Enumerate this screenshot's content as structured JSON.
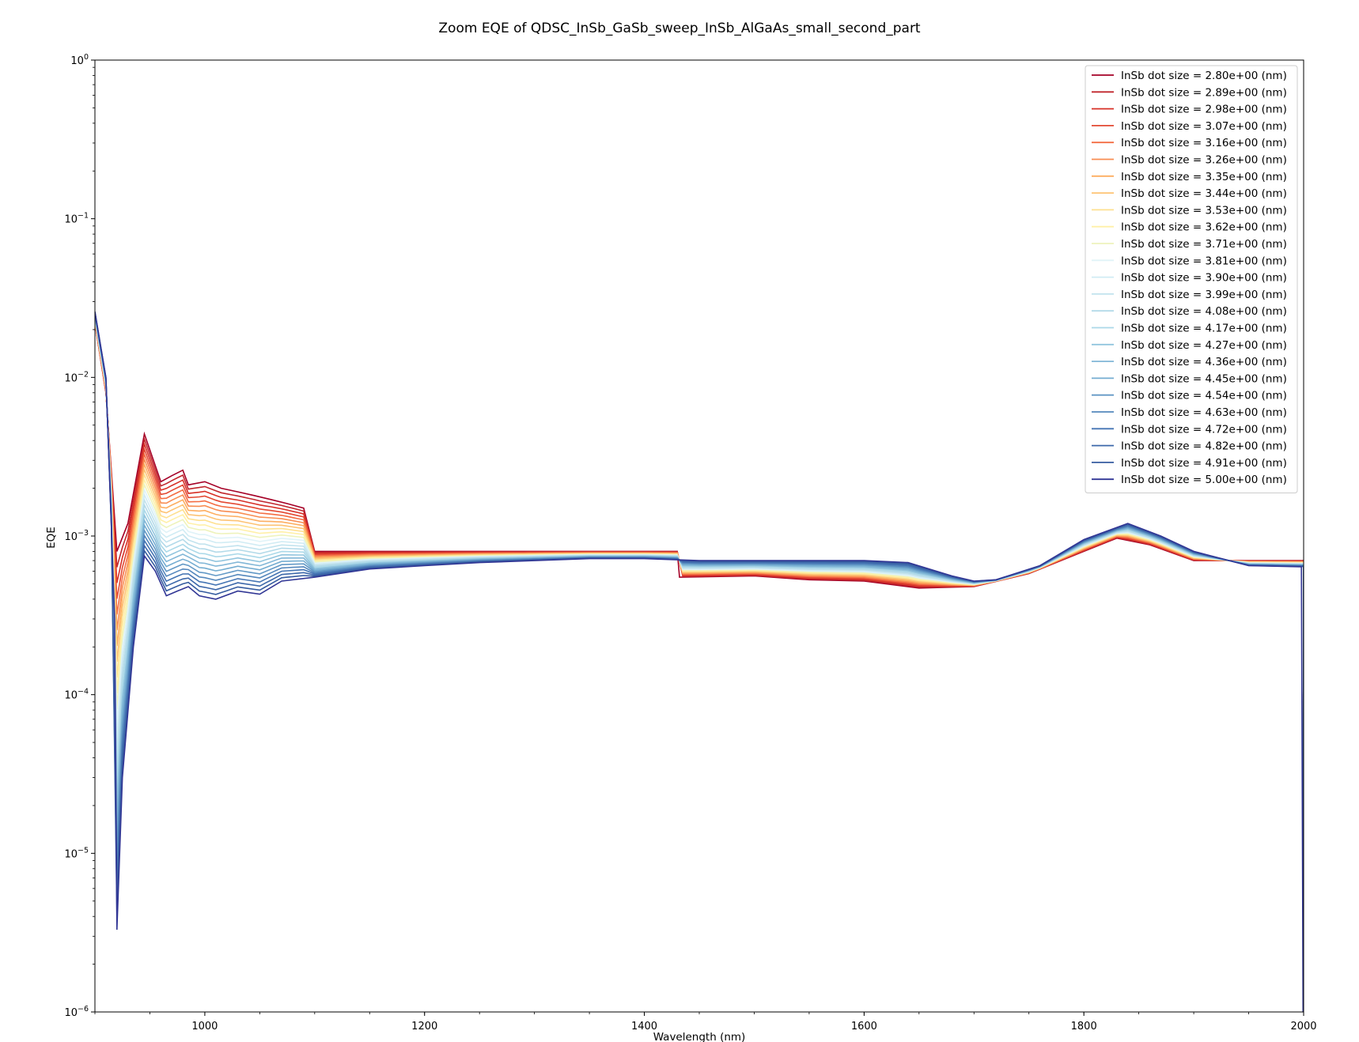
{
  "chart_data": {
    "type": "line",
    "title": "Zoom EQE of QDSC_InSb_GaSb_sweep_InSb_AlGaAs_small_second_part",
    "xlabel": "Wavelength (nm)",
    "ylabel": "EQE",
    "xlim": [
      900,
      2000
    ],
    "ylim": [
      1e-06,
      1
    ],
    "yscale": "log",
    "grid": false,
    "legend_position": "top-right",
    "x_ticks": [
      {
        "value": 1000,
        "label": "1000"
      },
      {
        "value": 1200,
        "label": "1200"
      },
      {
        "value": 1400,
        "label": "1400"
      },
      {
        "value": 1600,
        "label": "1600"
      },
      {
        "value": 1800,
        "label": "1800"
      },
      {
        "value": 2000,
        "label": "2000"
      }
    ],
    "y_ticks": [
      {
        "value": 1e-06,
        "base": "10",
        "exp": "−6"
      },
      {
        "value": 1e-05,
        "base": "10",
        "exp": "−5"
      },
      {
        "value": 0.0001,
        "base": "10",
        "exp": "−4"
      },
      {
        "value": 0.001,
        "base": "10",
        "exp": "−3"
      },
      {
        "value": 0.01,
        "base": "10",
        "exp": "−2"
      },
      {
        "value": 0.1,
        "base": "10",
        "exp": "−1"
      },
      {
        "value": 1,
        "base": "10",
        "exp": "0"
      }
    ],
    "series": [
      {
        "name": "InSb dot size = 2.80e+00 (nm)",
        "color": "#a50026",
        "points": [
          [
            900,
            0.022
          ],
          [
            910,
            0.008
          ],
          [
            920,
            0.0008
          ],
          [
            930,
            0.0012
          ],
          [
            945,
            0.0044
          ],
          [
            960,
            0.0022
          ],
          [
            970,
            0.0024
          ],
          [
            980,
            0.0026
          ],
          [
            985,
            0.0021
          ],
          [
            1000,
            0.0022
          ],
          [
            1015,
            0.002
          ],
          [
            1030,
            0.0019
          ],
          [
            1045,
            0.0018
          ],
          [
            1060,
            0.0017
          ],
          [
            1075,
            0.0016
          ],
          [
            1090,
            0.0015
          ],
          [
            1100,
            0.0008
          ],
          [
            1150,
            0.0008
          ],
          [
            1200,
            0.0008
          ],
          [
            1250,
            0.0008
          ],
          [
            1300,
            0.0008
          ],
          [
            1350,
            0.0008
          ],
          [
            1400,
            0.0008
          ],
          [
            1430,
            0.0008
          ],
          [
            1432,
            0.00055
          ],
          [
            1500,
            0.00056
          ],
          [
            1550,
            0.00053
          ],
          [
            1600,
            0.00052
          ],
          [
            1650,
            0.00047
          ],
          [
            1700,
            0.00048
          ],
          [
            1750,
            0.00058
          ],
          [
            1800,
            0.0008
          ],
          [
            1830,
            0.00097
          ],
          [
            1860,
            0.00088
          ],
          [
            1900,
            0.0007
          ],
          [
            1950,
            0.0007
          ],
          [
            2000,
            0.0007
          ],
          [
            1999.5,
            1e-06
          ]
        ]
      },
      {
        "name": "InSb dot size = 2.89e+00 (nm)",
        "color": "#c1272d",
        "points": []
      },
      {
        "name": "InSb dot size = 2.98e+00 (nm)",
        "color": "#d73027",
        "points": []
      },
      {
        "name": "InSb dot size = 3.07e+00 (nm)",
        "color": "#e34933",
        "points": []
      },
      {
        "name": "InSb dot size = 3.16e+00 (nm)",
        "color": "#f46d43",
        "points": []
      },
      {
        "name": "InSb dot size = 3.26e+00 (nm)",
        "color": "#f88d52",
        "points": []
      },
      {
        "name": "InSb dot size = 3.35e+00 (nm)",
        "color": "#fdae61",
        "points": []
      },
      {
        "name": "InSb dot size = 3.44e+00 (nm)",
        "color": "#fdc374",
        "points": []
      },
      {
        "name": "InSb dot size = 3.53e+00 (nm)",
        "color": "#fee090",
        "points": []
      },
      {
        "name": "InSb dot size = 3.62e+00 (nm)",
        "color": "#fff0a8",
        "points": []
      },
      {
        "name": "InSb dot size = 3.71e+00 (nm)",
        "color": "#eef3bc",
        "points": []
      },
      {
        "name": "InSb dot size = 3.81e+00 (nm)",
        "color": "#e0f3f8",
        "points": []
      },
      {
        "name": "InSb dot size = 3.90e+00 (nm)",
        "color": "#d1ecf4",
        "points": []
      },
      {
        "name": "InSb dot size = 3.99e+00 (nm)",
        "color": "#c2e3ee",
        "points": []
      },
      {
        "name": "InSb dot size = 4.08e+00 (nm)",
        "color": "#b3dae9",
        "points": []
      },
      {
        "name": "InSb dot size = 4.17e+00 (nm)",
        "color": "#abd9e9",
        "points": []
      },
      {
        "name": "InSb dot size = 4.27e+00 (nm)",
        "color": "#92c5de",
        "points": []
      },
      {
        "name": "InSb dot size = 4.36e+00 (nm)",
        "color": "#82b7d7",
        "points": []
      },
      {
        "name": "InSb dot size = 4.45e+00 (nm)",
        "color": "#74add1",
        "points": []
      },
      {
        "name": "InSb dot size = 4.54e+00 (nm)",
        "color": "#6399c6",
        "points": []
      },
      {
        "name": "InSb dot size = 4.63e+00 (nm)",
        "color": "#5588bd",
        "points": []
      },
      {
        "name": "InSb dot size = 4.72e+00 (nm)",
        "color": "#4575b4",
        "points": []
      },
      {
        "name": "InSb dot size = 4.82e+00 (nm)",
        "color": "#3d68aa",
        "points": []
      },
      {
        "name": "InSb dot size = 4.91e+00 (nm)",
        "color": "#365ca0",
        "points": []
      },
      {
        "name": "InSb dot size = 5.00e+00 (nm)",
        "color": "#313695",
        "points": [
          [
            900,
            0.026
          ],
          [
            910,
            0.01
          ],
          [
            918,
            0.0003
          ],
          [
            920,
            3.3e-06
          ],
          [
            925,
            3e-05
          ],
          [
            935,
            0.0002
          ],
          [
            945,
            0.00075
          ],
          [
            955,
            0.0006
          ],
          [
            965,
            0.00042
          ],
          [
            975,
            0.00045
          ],
          [
            985,
            0.00048
          ],
          [
            995,
            0.00042
          ],
          [
            1010,
            0.0004
          ],
          [
            1030,
            0.00045
          ],
          [
            1050,
            0.00043
          ],
          [
            1070,
            0.00052
          ],
          [
            1100,
            0.00055
          ],
          [
            1150,
            0.00062
          ],
          [
            1200,
            0.00065
          ],
          [
            1250,
            0.00068
          ],
          [
            1300,
            0.0007
          ],
          [
            1350,
            0.00072
          ],
          [
            1400,
            0.00072
          ],
          [
            1450,
            0.0007
          ],
          [
            1500,
            0.0007
          ],
          [
            1550,
            0.0007
          ],
          [
            1600,
            0.0007
          ],
          [
            1640,
            0.00068
          ],
          [
            1680,
            0.00056
          ],
          [
            1700,
            0.00052
          ],
          [
            1720,
            0.00053
          ],
          [
            1760,
            0.00065
          ],
          [
            1800,
            0.00095
          ],
          [
            1840,
            0.0012
          ],
          [
            1870,
            0.001
          ],
          [
            1900,
            0.0008
          ],
          [
            1950,
            0.00065
          ],
          [
            1998,
            0.00064
          ],
          [
            1999.5,
            1e-06
          ]
        ]
      }
    ]
  }
}
